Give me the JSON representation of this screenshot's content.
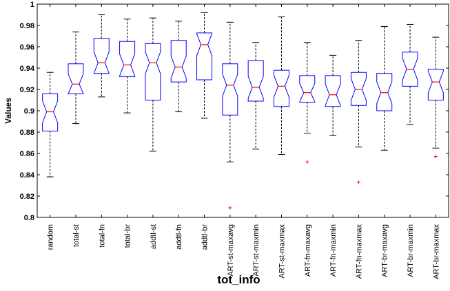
{
  "chart_data": {
    "type": "boxplot",
    "title": "",
    "xlabel": "tot_info",
    "ylabel": "Values",
    "ylim": [
      0.8,
      1.0
    ],
    "y_ticks": [
      0.8,
      0.82,
      0.84,
      0.86,
      0.88,
      0.9,
      0.92,
      0.94,
      0.96,
      0.98,
      1.0
    ],
    "y_tick_labels": [
      "0.8",
      "0.82",
      "0.84",
      "0.86",
      "0.88",
      "0.9",
      "0.92",
      "0.94",
      "0.96",
      "0.98",
      "1"
    ],
    "notched": true,
    "grid": false,
    "categories": [
      "random",
      "total-st",
      "total-fn",
      "total-br",
      "addtl-st",
      "addtl-fn",
      "addtl-br",
      "ART-st-maxavg",
      "ART-st-maxmin",
      "ART-st-maxmax",
      "ART-fn-maxavg",
      "ART-fn-maxmin",
      "ART-fn-maxmax",
      "ART-br-maxavg",
      "ART-br-maxmin",
      "ART-br-maxmax"
    ],
    "boxes": [
      {
        "whisker_low": 0.838,
        "q1": 0.881,
        "median": 0.899,
        "q3": 0.916,
        "whisker_high": 0.936,
        "outliers": []
      },
      {
        "whisker_low": 0.888,
        "q1": 0.916,
        "median": 0.925,
        "q3": 0.944,
        "whisker_high": 0.974,
        "outliers": []
      },
      {
        "whisker_low": 0.913,
        "q1": 0.935,
        "median": 0.945,
        "q3": 0.968,
        "whisker_high": 0.99,
        "outliers": []
      },
      {
        "whisker_low": 0.898,
        "q1": 0.932,
        "median": 0.943,
        "q3": 0.965,
        "whisker_high": 0.986,
        "outliers": []
      },
      {
        "whisker_low": 0.862,
        "q1": 0.91,
        "median": 0.945,
        "q3": 0.963,
        "whisker_high": 0.987,
        "outliers": []
      },
      {
        "whisker_low": 0.899,
        "q1": 0.927,
        "median": 0.941,
        "q3": 0.966,
        "whisker_high": 0.984,
        "outliers": []
      },
      {
        "whisker_low": 0.893,
        "q1": 0.929,
        "median": 0.962,
        "q3": 0.973,
        "whisker_high": 0.992,
        "outliers": []
      },
      {
        "whisker_low": 0.852,
        "q1": 0.896,
        "median": 0.924,
        "q3": 0.944,
        "whisker_high": 0.983,
        "outliers": [
          0.809
        ]
      },
      {
        "whisker_low": 0.864,
        "q1": 0.909,
        "median": 0.922,
        "q3": 0.947,
        "whisker_high": 0.964,
        "outliers": []
      },
      {
        "whisker_low": 0.859,
        "q1": 0.904,
        "median": 0.923,
        "q3": 0.938,
        "whisker_high": 0.988,
        "outliers": []
      },
      {
        "whisker_low": 0.879,
        "q1": 0.908,
        "median": 0.917,
        "q3": 0.933,
        "whisker_high": 0.964,
        "outliers": [
          0.852
        ]
      },
      {
        "whisker_low": 0.877,
        "q1": 0.904,
        "median": 0.915,
        "q3": 0.933,
        "whisker_high": 0.952,
        "outliers": []
      },
      {
        "whisker_low": 0.866,
        "q1": 0.905,
        "median": 0.92,
        "q3": 0.936,
        "whisker_high": 0.966,
        "outliers": [
          0.833
        ]
      },
      {
        "whisker_low": 0.863,
        "q1": 0.9,
        "median": 0.917,
        "q3": 0.935,
        "whisker_high": 0.979,
        "outliers": []
      },
      {
        "whisker_low": 0.887,
        "q1": 0.923,
        "median": 0.939,
        "q3": 0.955,
        "whisker_high": 0.981,
        "outliers": []
      },
      {
        "whisker_low": 0.865,
        "q1": 0.91,
        "median": 0.927,
        "q3": 0.939,
        "whisker_high": 0.969,
        "outliers": [
          0.857
        ]
      }
    ],
    "colors": {
      "box": "#0000ff",
      "median": "#ff0000",
      "whisker": "#000000",
      "outlier": "#ff0000",
      "axes": "#000000"
    }
  }
}
